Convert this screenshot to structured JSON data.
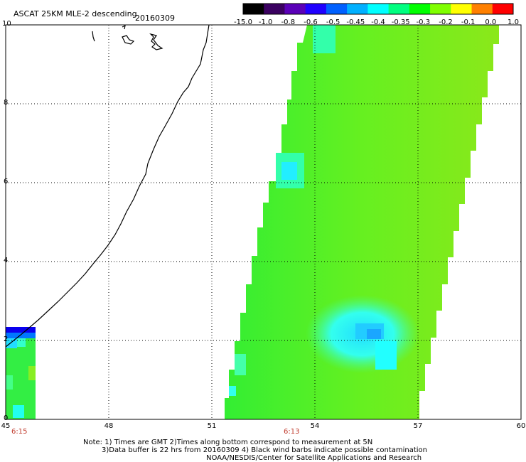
{
  "title": {
    "product": "ASCAT 25KM MLE-2 descending",
    "date": "20160309"
  },
  "colorbar": {
    "labels": [
      "-15.0",
      "-1.0",
      "-0.8",
      "-0.6",
      "-0.5",
      "-0.45",
      "-0.4",
      "-0.35",
      "-0.3",
      "-0.2",
      "-0.1",
      "0.0",
      "1.0"
    ],
    "colors": [
      "#000000",
      "#3a0060",
      "#5a00b8",
      "#1f00ff",
      "#0060ff",
      "#00b0ff",
      "#00ffff",
      "#00ff80",
      "#00ff00",
      "#80ff00",
      "#ffff00",
      "#ff8000",
      "#ff0000"
    ]
  },
  "map": {
    "x_ticks": [
      "45",
      "48",
      "51",
      "54",
      "57",
      "60"
    ],
    "y_ticks": [
      "0",
      "2",
      "4",
      "6",
      "8",
      "10"
    ],
    "swath_times": [
      "6:15",
      "6:13"
    ]
  },
  "notes": [
    "Note: 1) Times are GMT 2)Times along bottom correspond to measurement at 5N",
    "3)Data buffer is 22 hrs from 20160309 4) Black wind barbs indicate possible contamination",
    "NOAA/NESDIS/Center for Satellite Applications and Research"
  ]
}
